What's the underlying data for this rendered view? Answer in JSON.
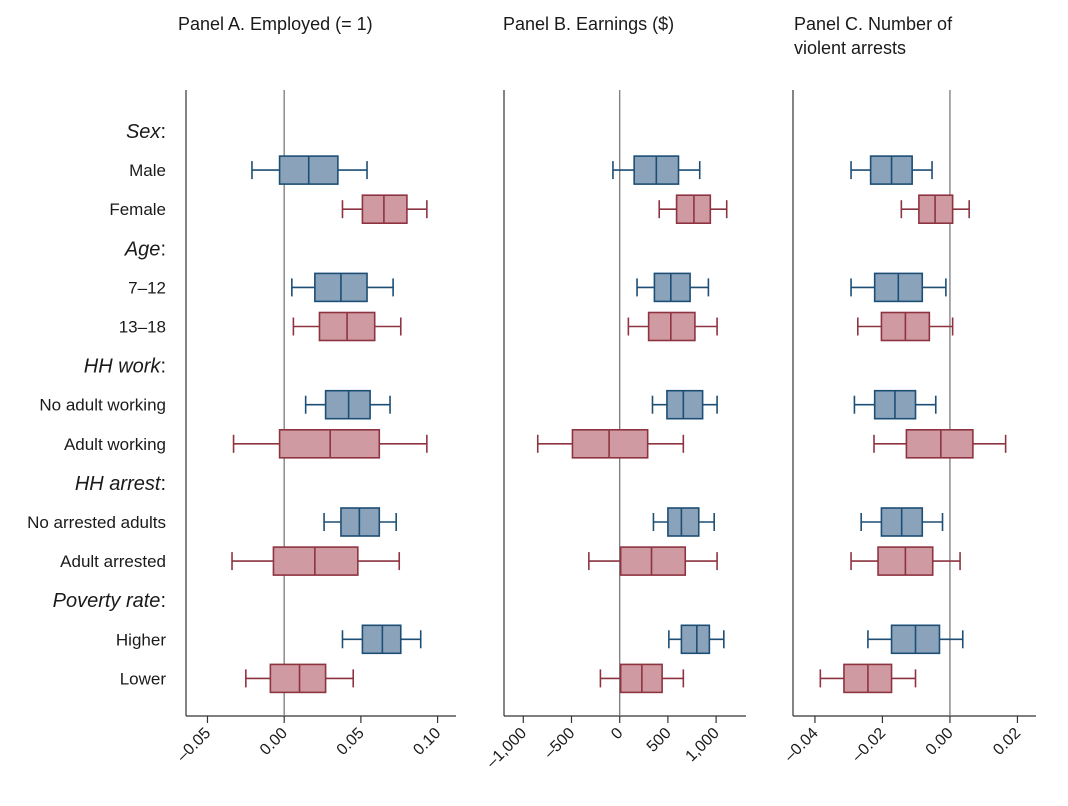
{
  "colors": {
    "blue_fill": "#8aa3bb",
    "blue_stroke": "#1d4e75",
    "red_fill": "#cf9aa1",
    "red_stroke": "#8e3441",
    "axis": "#333333",
    "zero_line": "#7a7a7a"
  },
  "chart_data": {
    "type": "box",
    "rows": [
      {
        "label": "Sex",
        "kind": "group"
      },
      {
        "label": "Male",
        "kind": "item",
        "color": "blue"
      },
      {
        "label": "Female",
        "kind": "item",
        "color": "red"
      },
      {
        "label": "Age",
        "kind": "group"
      },
      {
        "label": "7–12",
        "kind": "item",
        "color": "blue"
      },
      {
        "label": "13–18",
        "kind": "item",
        "color": "red"
      },
      {
        "label": "HH work",
        "kind": "group"
      },
      {
        "label": "No adult working",
        "kind": "item",
        "color": "blue"
      },
      {
        "label": "Adult working",
        "kind": "item",
        "color": "red"
      },
      {
        "label": "HH arrest",
        "kind": "group"
      },
      {
        "label": "No arrested adults",
        "kind": "item",
        "color": "blue"
      },
      {
        "label": "Adult arrested",
        "kind": "item",
        "color": "red"
      },
      {
        "label": "Poverty rate",
        "kind": "group"
      },
      {
        "label": "Higher",
        "kind": "item",
        "color": "blue"
      },
      {
        "label": "Lower",
        "kind": "item",
        "color": "red"
      }
    ],
    "panels": [
      {
        "title": [
          "Panel A. Employed (= 1)"
        ],
        "xlim": [
          -0.064,
          0.112
        ],
        "ticks": [
          -0.05,
          0.0,
          0.05,
          0.1
        ],
        "tick_labels": [
          "–0.05",
          "0.00",
          "0.05",
          "0.10"
        ],
        "boxes": [
          {
            "row": "Male",
            "whisker_low": -0.021,
            "q1": -0.003,
            "median": 0.016,
            "q3": 0.035,
            "whisker_high": 0.054
          },
          {
            "row": "Female",
            "whisker_low": 0.038,
            "q1": 0.051,
            "median": 0.065,
            "q3": 0.08,
            "whisker_high": 0.093
          },
          {
            "row": "7–12",
            "whisker_low": 0.005,
            "q1": 0.02,
            "median": 0.037,
            "q3": 0.054,
            "whisker_high": 0.071
          },
          {
            "row": "13–18",
            "whisker_low": 0.006,
            "q1": 0.023,
            "median": 0.041,
            "q3": 0.059,
            "whisker_high": 0.076
          },
          {
            "row": "No adult working",
            "whisker_low": 0.014,
            "q1": 0.027,
            "median": 0.042,
            "q3": 0.056,
            "whisker_high": 0.069
          },
          {
            "row": "Adult working",
            "whisker_low": -0.033,
            "q1": -0.003,
            "median": 0.03,
            "q3": 0.062,
            "whisker_high": 0.093
          },
          {
            "row": "No arrested adults",
            "whisker_low": 0.026,
            "q1": 0.037,
            "median": 0.049,
            "q3": 0.062,
            "whisker_high": 0.073
          },
          {
            "row": "Adult arrested",
            "whisker_low": -0.034,
            "q1": -0.007,
            "median": 0.02,
            "q3": 0.048,
            "whisker_high": 0.075
          },
          {
            "row": "Higher",
            "whisker_low": 0.038,
            "q1": 0.051,
            "median": 0.064,
            "q3": 0.076,
            "whisker_high": 0.089
          },
          {
            "row": "Lower",
            "whisker_low": -0.025,
            "q1": -0.009,
            "median": 0.01,
            "q3": 0.027,
            "whisker_high": 0.045
          }
        ]
      },
      {
        "title": [
          "Panel B. Earnings ($)"
        ],
        "xlim": [
          -1200,
          1310
        ],
        "ticks": [
          -1000,
          -500,
          0,
          500,
          1000
        ],
        "tick_labels": [
          "–1,000",
          "–500",
          "0",
          "500",
          "1,000"
        ],
        "boxes": [
          {
            "row": "Male",
            "whisker_low": -70,
            "q1": 150,
            "median": 380,
            "q3": 610,
            "whisker_high": 830
          },
          {
            "row": "Female",
            "whisker_low": 410,
            "q1": 590,
            "median": 770,
            "q3": 940,
            "whisker_high": 1110
          },
          {
            "row": "7–12",
            "whisker_low": 180,
            "q1": 360,
            "median": 530,
            "q3": 730,
            "whisker_high": 920
          },
          {
            "row": "13–18",
            "whisker_low": 90,
            "q1": 300,
            "median": 530,
            "q3": 780,
            "whisker_high": 1010
          },
          {
            "row": "No adult working",
            "whisker_low": 340,
            "q1": 490,
            "median": 660,
            "q3": 860,
            "whisker_high": 1010
          },
          {
            "row": "Adult working",
            "whisker_low": -850,
            "q1": -490,
            "median": -110,
            "q3": 290,
            "whisker_high": 660
          },
          {
            "row": "No arrested adults",
            "whisker_low": 350,
            "q1": 500,
            "median": 640,
            "q3": 820,
            "whisker_high": 980
          },
          {
            "row": "Adult arrested",
            "whisker_low": -320,
            "q1": 10,
            "median": 330,
            "q3": 680,
            "whisker_high": 1010
          },
          {
            "row": "Higher",
            "whisker_low": 510,
            "q1": 640,
            "median": 800,
            "q3": 930,
            "whisker_high": 1080
          },
          {
            "row": "Lower",
            "whisker_low": -200,
            "q1": 10,
            "median": 230,
            "q3": 440,
            "whisker_high": 660
          }
        ]
      },
      {
        "title": [
          "Panel C. Number of",
          "violent arrests"
        ],
        "xlim": [
          -0.0465,
          0.0255
        ],
        "ticks": [
          -0.04,
          -0.02,
          0.0,
          0.02
        ],
        "tick_labels": [
          "–0.04",
          "–0.02",
          "0.00",
          "0.02"
        ],
        "boxes": [
          {
            "row": "Male",
            "whisker_low": -0.0293,
            "q1": -0.0235,
            "median": -0.0173,
            "q3": -0.0112,
            "whisker_high": -0.0053
          },
          {
            "row": "Female",
            "whisker_low": -0.0144,
            "q1": -0.0092,
            "median": -0.0044,
            "q3": 0.0008,
            "whisker_high": 0.0057
          },
          {
            "row": "7–12",
            "whisker_low": -0.0293,
            "q1": -0.0223,
            "median": -0.0153,
            "q3": -0.0082,
            "whisker_high": -0.0012
          },
          {
            "row": "13–18",
            "whisker_low": -0.0273,
            "q1": -0.0203,
            "median": -0.0132,
            "q3": -0.0061,
            "whisker_high": 0.0008
          },
          {
            "row": "No adult working",
            "whisker_low": -0.0283,
            "q1": -0.0223,
            "median": -0.0163,
            "q3": -0.0102,
            "whisker_high": -0.0042
          },
          {
            "row": "Adult working",
            "whisker_low": -0.0225,
            "q1": -0.0129,
            "median": -0.0027,
            "q3": 0.0068,
            "whisker_high": 0.0165
          },
          {
            "row": "No arrested adults",
            "whisker_low": -0.0263,
            "q1": -0.0203,
            "median": -0.0143,
            "q3": -0.0082,
            "whisker_high": -0.0022
          },
          {
            "row": "Adult arrested",
            "whisker_low": -0.0293,
            "q1": -0.0213,
            "median": -0.0132,
            "q3": -0.0051,
            "whisker_high": 0.003
          },
          {
            "row": "Higher",
            "whisker_low": -0.0243,
            "q1": -0.0173,
            "median": -0.0102,
            "q3": -0.0031,
            "whisker_high": 0.0038
          },
          {
            "row": "Lower",
            "whisker_low": -0.0384,
            "q1": -0.0314,
            "median": -0.0243,
            "q3": -0.0173,
            "whisker_high": -0.0102
          }
        ]
      }
    ]
  }
}
